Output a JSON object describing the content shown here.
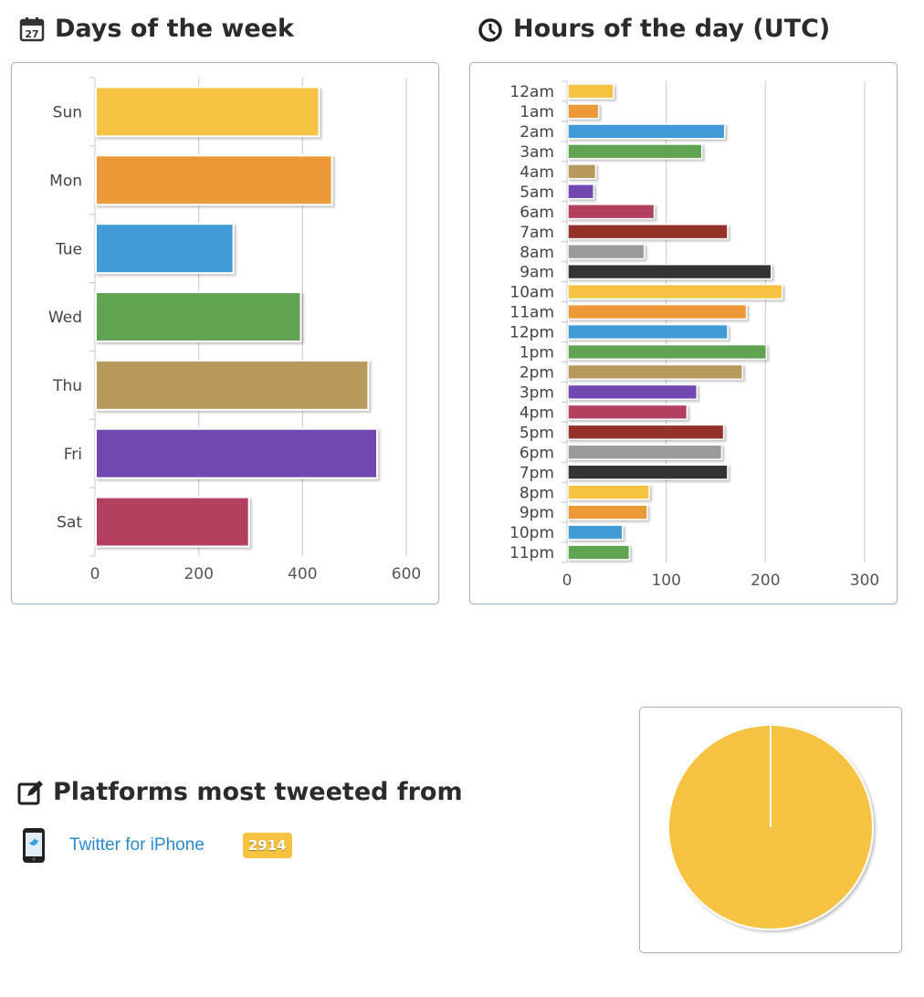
{
  "sections": {
    "days_title": "Days of the week",
    "days_icon_day": "27",
    "hours_title": "Hours of the day (UTC)",
    "platforms_title": "Platforms most tweeted from"
  },
  "platforms": [
    {
      "name": "Twitter for iPhone",
      "count": "2914",
      "icon": "iphone-icon"
    }
  ],
  "colors": {
    "palette": [
      "#f5c242",
      "#ec9a38",
      "#419ad6",
      "#60a351",
      "#b8995c",
      "#7247b2",
      "#b43f61",
      "#93302a",
      "#9a9a9a",
      "#333333"
    ]
  },
  "chart_data": [
    {
      "type": "bar",
      "orientation": "horizontal",
      "title": "Days of the week",
      "categories": [
        "Sun",
        "Mon",
        "Tue",
        "Wed",
        "Thu",
        "Fri",
        "Sat"
      ],
      "values": [
        430,
        455,
        265,
        395,
        525,
        542,
        295
      ],
      "xlim": [
        0,
        600
      ],
      "xticks": [
        0,
        200,
        400,
        600
      ],
      "grid": true
    },
    {
      "type": "bar",
      "orientation": "horizontal",
      "title": "Hours of the day (UTC)",
      "categories": [
        "12am",
        "1am",
        "2am",
        "3am",
        "4am",
        "5am",
        "6am",
        "7am",
        "8am",
        "9am",
        "10am",
        "11am",
        "12pm",
        "1pm",
        "2pm",
        "3pm",
        "4pm",
        "5pm",
        "6pm",
        "7pm",
        "8pm",
        "9pm",
        "10pm",
        "11pm"
      ],
      "values": [
        46,
        31,
        158,
        135,
        28,
        26,
        87,
        161,
        77,
        205,
        216,
        180,
        161,
        200,
        176,
        130,
        120,
        157,
        155,
        161,
        82,
        80,
        55,
        62
      ],
      "xlim": [
        0,
        300
      ],
      "xticks": [
        0,
        100,
        200,
        300
      ],
      "grid": true
    },
    {
      "type": "pie",
      "title": "Platforms most tweeted from",
      "labels": [
        "Twitter for iPhone"
      ],
      "values": [
        2914
      ]
    }
  ]
}
